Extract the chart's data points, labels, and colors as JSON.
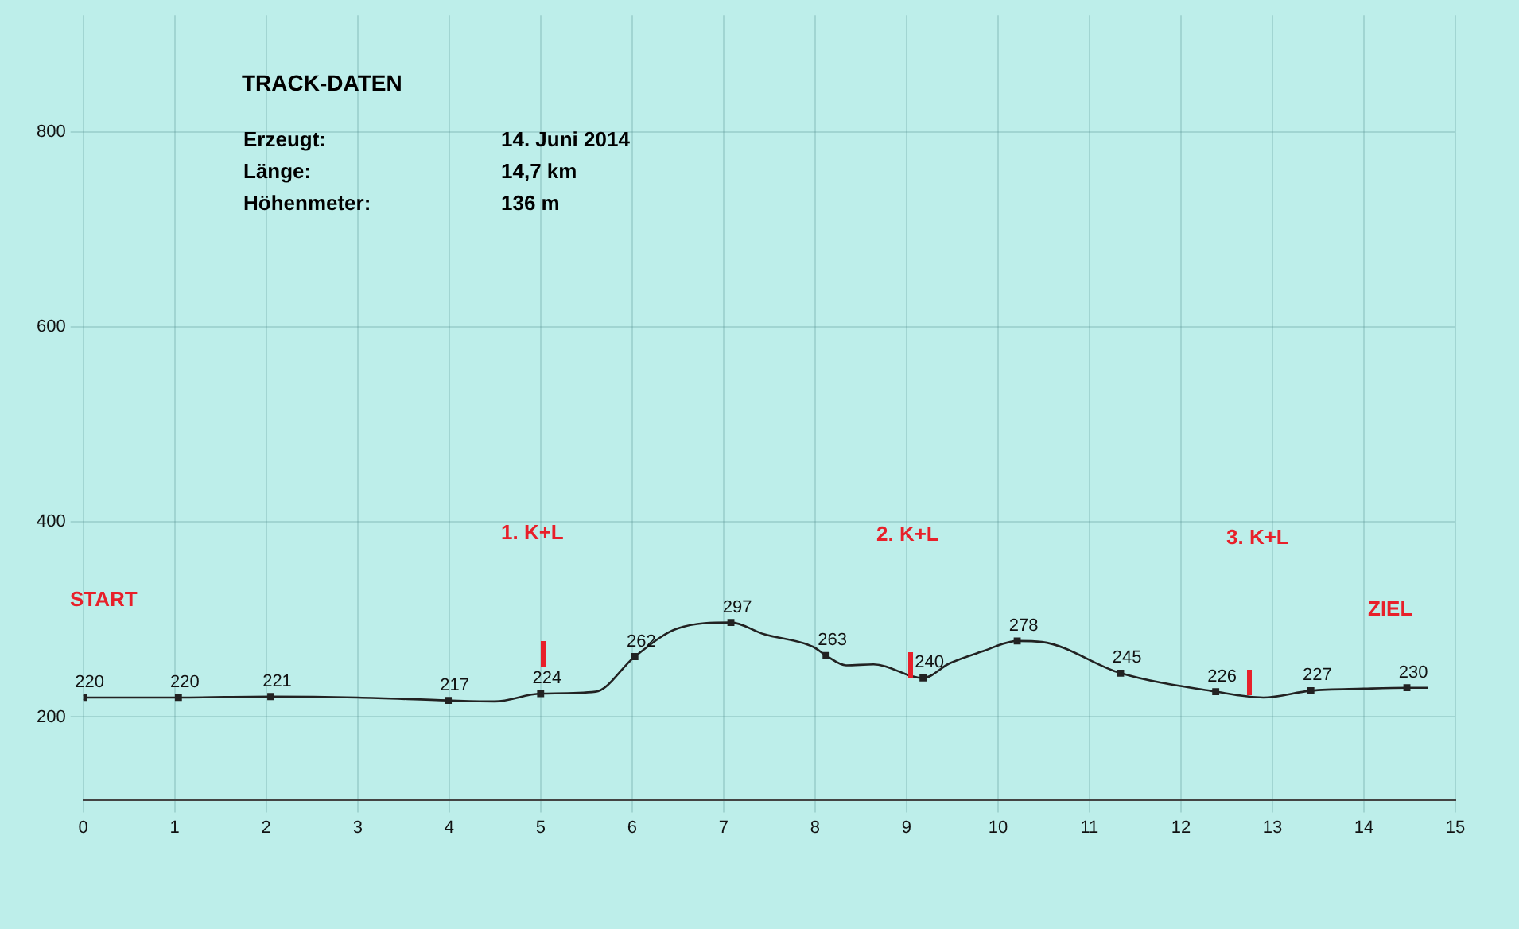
{
  "chart_data": {
    "type": "line",
    "title": "TRACK-DATEN",
    "annotations": [
      "Erzeugt:",
      "14. Juni 2014",
      "Länge:",
      "14,7 km",
      "Höhenmeter:",
      "136 m",
      "START",
      "1. K+L",
      "2. K+L",
      "3. K+L",
      "ZIEL"
    ],
    "xlim": [
      0,
      15
    ],
    "xticks": [
      0,
      1,
      2,
      3,
      4,
      5,
      6,
      7,
      8,
      9,
      10,
      11,
      12,
      13,
      14,
      15
    ],
    "ylim": [
      115,
      920
    ],
    "yticks": [
      200,
      400,
      600,
      800
    ],
    "grid": true,
    "legend": false,
    "marker": "square",
    "series": [
      {
        "color": "#222222",
        "x": [
          0,
          1.04,
          2.05,
          3,
          3.99,
          4.5,
          5,
          5.6,
          6.03,
          6.5,
          7.08,
          7.44,
          7.98,
          8.12,
          8.34,
          8.64,
          9.18,
          9.47,
          9.82,
          10.21,
          10.48,
          11.34,
          12.38,
          12.9,
          13.42,
          14,
          14.47,
          14.7
        ],
        "values": [
          220,
          220,
          221,
          220,
          217,
          216,
          224,
          226,
          262,
          291,
          297,
          285,
          272,
          263,
          253,
          254,
          240,
          255,
          267,
          278,
          277,
          245,
          226,
          220,
          227,
          229,
          230,
          230
        ],
        "value_labels": [
          "220",
          "220",
          "221",
          null,
          "217",
          null,
          "224",
          null,
          "262",
          null,
          "297",
          null,
          null,
          "263",
          null,
          null,
          "240",
          null,
          null,
          "278",
          null,
          "245",
          "226",
          null,
          "227",
          null,
          "230",
          null
        ]
      }
    ]
  }
}
